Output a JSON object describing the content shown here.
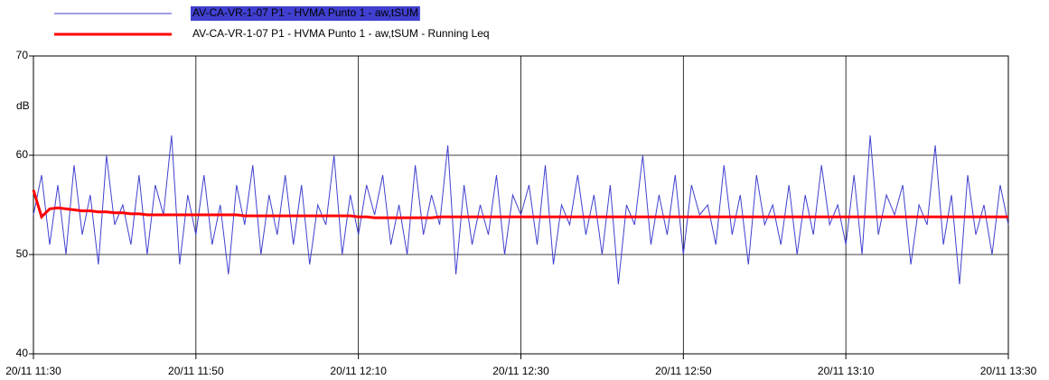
{
  "chart_data": {
    "type": "line",
    "y_label": "dB",
    "x": [
      "20/11 11:30",
      "20/11 11:31",
      "20/11 11:32",
      "20/11 11:33",
      "20/11 11:34",
      "20/11 11:35",
      "20/11 11:36",
      "20/11 11:37",
      "20/11 11:38",
      "20/11 11:39",
      "20/11 11:40",
      "20/11 11:41",
      "20/11 11:42",
      "20/11 11:43",
      "20/11 11:44",
      "20/11 11:45",
      "20/11 11:46",
      "20/11 11:47",
      "20/11 11:48",
      "20/11 11:49",
      "20/11 11:50",
      "20/11 11:51",
      "20/11 11:52",
      "20/11 11:53",
      "20/11 11:54",
      "20/11 11:55",
      "20/11 11:56",
      "20/11 11:57",
      "20/11 11:58",
      "20/11 11:59",
      "20/11 12:00",
      "20/11 12:01",
      "20/11 12:02",
      "20/11 12:03",
      "20/11 12:04",
      "20/11 12:05",
      "20/11 12:06",
      "20/11 12:07",
      "20/11 12:08",
      "20/11 12:09",
      "20/11 12:10",
      "20/11 12:11",
      "20/11 12:12",
      "20/11 12:13",
      "20/11 12:14",
      "20/11 12:15",
      "20/11 12:16",
      "20/11 12:17",
      "20/11 12:18",
      "20/11 12:19",
      "20/11 12:20",
      "20/11 12:21",
      "20/11 12:22",
      "20/11 12:23",
      "20/11 12:24",
      "20/11 12:25",
      "20/11 12:26",
      "20/11 12:27",
      "20/11 12:28",
      "20/11 12:29",
      "20/11 12:30",
      "20/11 12:31",
      "20/11 12:32",
      "20/11 12:33",
      "20/11 12:34",
      "20/11 12:35",
      "20/11 12:36",
      "20/11 12:37",
      "20/11 12:38",
      "20/11 12:39",
      "20/11 12:40",
      "20/11 12:41",
      "20/11 12:42",
      "20/11 12:43",
      "20/11 12:44",
      "20/11 12:45",
      "20/11 12:46",
      "20/11 12:47",
      "20/11 12:48",
      "20/11 12:49",
      "20/11 12:50",
      "20/11 12:51",
      "20/11 12:52",
      "20/11 12:53",
      "20/11 12:54",
      "20/11 12:55",
      "20/11 12:56",
      "20/11 12:57",
      "20/11 12:58",
      "20/11 12:59",
      "20/11 13:00",
      "20/11 13:01",
      "20/11 13:02",
      "20/11 13:03",
      "20/11 13:04",
      "20/11 13:05",
      "20/11 13:06",
      "20/11 13:07",
      "20/11 13:08",
      "20/11 13:09",
      "20/11 13:10",
      "20/11 13:11",
      "20/11 13:12",
      "20/11 13:13",
      "20/11 13:14",
      "20/11 13:15",
      "20/11 13:16",
      "20/11 13:17",
      "20/11 13:18",
      "20/11 13:19",
      "20/11 13:20",
      "20/11 13:21",
      "20/11 13:22",
      "20/11 13:23",
      "20/11 13:24",
      "20/11 13:25",
      "20/11 13:26",
      "20/11 13:27",
      "20/11 13:28",
      "20/11 13:29",
      "20/11 13:30"
    ],
    "series": [
      {
        "name": "AV-CA-VR-1-07 P1 - HVMA Punto 1 - aw,tSUM",
        "color": "#4040d0",
        "values": [
          54,
          58,
          51,
          57,
          50,
          59,
          52,
          56,
          49,
          60,
          53,
          55,
          51,
          58,
          50,
          57,
          54,
          62,
          49,
          56,
          52,
          58,
          51,
          55,
          48,
          57,
          53,
          59,
          50,
          56,
          52,
          58,
          51,
          57,
          49,
          55,
          53,
          60,
          50,
          56,
          52,
          57,
          54,
          58,
          51,
          55,
          50,
          59,
          52,
          56,
          53,
          61,
          48,
          57,
          51,
          55,
          52,
          58,
          50,
          56,
          54,
          57,
          51,
          59,
          49,
          55,
          53,
          58,
          52,
          56,
          50,
          57,
          47,
          55,
          53,
          60,
          51,
          56,
          52,
          58,
          50,
          57,
          54,
          55,
          51,
          59,
          52,
          56,
          49,
          58,
          53,
          55,
          51,
          57,
          50,
          56,
          52,
          59,
          53,
          55,
          51,
          58,
          50,
          62,
          52,
          56,
          54,
          57,
          49,
          55,
          53,
          61,
          51,
          56,
          47,
          58,
          52,
          55,
          50,
          57,
          53
        ]
      },
      {
        "name": "AV-CA-VR-1-07 P1 - HVMA Punto 1 - aw,tSUM - Running Leq",
        "color": "#ff0000",
        "values": [
          56.5,
          53.8,
          54.6,
          54.7,
          54.6,
          54.5,
          54.4,
          54.4,
          54.3,
          54.3,
          54.2,
          54.2,
          54.1,
          54.1,
          54.0,
          54.0,
          54.0,
          54.0,
          54.0,
          54.0,
          54.0,
          54.0,
          54.0,
          54.0,
          54.0,
          54.0,
          53.9,
          53.9,
          53.9,
          53.9,
          53.9,
          53.9,
          53.9,
          53.9,
          53.9,
          53.9,
          53.9,
          53.9,
          53.9,
          53.9,
          53.8,
          53.8,
          53.7,
          53.7,
          53.7,
          53.7,
          53.7,
          53.7,
          53.7,
          53.7,
          53.8,
          53.8,
          53.8,
          53.8,
          53.8,
          53.8,
          53.8,
          53.8,
          53.8,
          53.8,
          53.8,
          53.8,
          53.8,
          53.8,
          53.8,
          53.8,
          53.8,
          53.8,
          53.8,
          53.8,
          53.8,
          53.8,
          53.8,
          53.8,
          53.8,
          53.8,
          53.8,
          53.8,
          53.8,
          53.8,
          53.8,
          53.8,
          53.8,
          53.8,
          53.8,
          53.8,
          53.8,
          53.8,
          53.8,
          53.8,
          53.8,
          53.8,
          53.8,
          53.8,
          53.8,
          53.8,
          53.8,
          53.8,
          53.8,
          53.8,
          53.8,
          53.8,
          53.8,
          53.8,
          53.8,
          53.8,
          53.8,
          53.8,
          53.8,
          53.8,
          53.8,
          53.8,
          53.8,
          53.8,
          53.8,
          53.8,
          53.8,
          53.8,
          53.8,
          53.8,
          53.8
        ]
      }
    ],
    "xlim": [
      "20/11 11:30",
      "20/11 13:30"
    ],
    "xticks": [
      "20/11 11:30",
      "20/11 11:50",
      "20/11 12:10",
      "20/11 12:30",
      "20/11 12:50",
      "20/11 13:10",
      "20/11 13:30"
    ],
    "ylim": [
      40,
      70
    ],
    "yticks": [
      40,
      50,
      60,
      70
    ],
    "grid": true
  }
}
